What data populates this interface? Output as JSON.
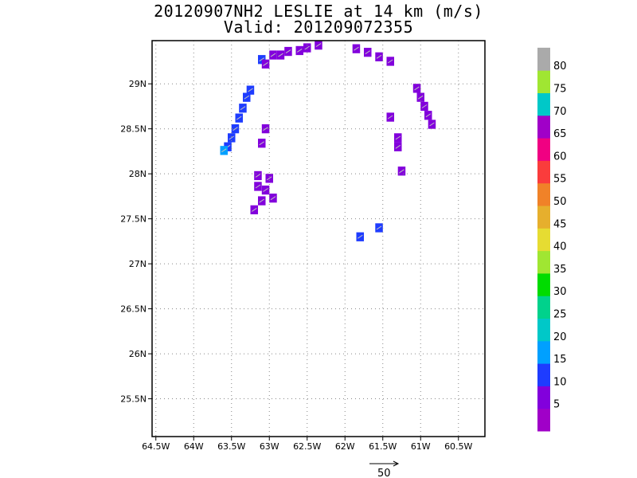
{
  "title": "20120907NH2 LESLIE at 14 km (m/s)",
  "subtitle": "Valid: 201209072355",
  "chart_data": {
    "type": "heatmap",
    "x_range": [
      -64.55,
      -60.15
    ],
    "y_range": [
      25.08,
      29.48
    ],
    "x_ticks": [
      {
        "v": -64.5,
        "label": "64.5W"
      },
      {
        "v": -64,
        "label": "64W"
      },
      {
        "v": -63.5,
        "label": "63.5W"
      },
      {
        "v": -63,
        "label": "63W"
      },
      {
        "v": -62.5,
        "label": "62.5W"
      },
      {
        "v": -62,
        "label": "62W"
      },
      {
        "v": -61.5,
        "label": "61.5W"
      },
      {
        "v": -61,
        "label": "61W"
      },
      {
        "v": -60.5,
        "label": "60.5W"
      }
    ],
    "y_ticks": [
      {
        "v": 25.5,
        "label": "25.5N"
      },
      {
        "v": 26,
        "label": "26N"
      },
      {
        "v": 26.5,
        "label": "26.5N"
      },
      {
        "v": 27,
        "label": "27N"
      },
      {
        "v": 27.5,
        "label": "27.5N"
      },
      {
        "v": 28,
        "label": "28N"
      },
      {
        "v": 28.5,
        "label": "28.5N"
      },
      {
        "v": 29,
        "label": "29N"
      }
    ],
    "grid": true,
    "colorbar": {
      "labels": [
        "5",
        "10",
        "15",
        "20",
        "25",
        "30",
        "35",
        "40",
        "45",
        "50",
        "55",
        "60",
        "65",
        "70",
        "75",
        "80"
      ],
      "colors": [
        "#a000c8",
        "#8200dc",
        "#1e3cff",
        "#00a0ff",
        "#00c8c8",
        "#00d28c",
        "#00dc00",
        "#a0e632",
        "#e6dc32",
        "#e6af2d",
        "#f08228",
        "#fa3c3c",
        "#f00082",
        "#a000c8",
        "#00c8c8",
        "#a0e632",
        "#aaaaaa"
      ]
    },
    "cells": [
      {
        "lon": -63.1,
        "lat": 29.27,
        "v": 12
      },
      {
        "lon": -63.05,
        "lat": 29.22,
        "v": 6
      },
      {
        "lon": -62.95,
        "lat": 29.32,
        "v": 6
      },
      {
        "lon": -62.85,
        "lat": 29.32,
        "v": 6
      },
      {
        "lon": -62.75,
        "lat": 29.36,
        "v": 6
      },
      {
        "lon": -62.6,
        "lat": 29.37,
        "v": 6
      },
      {
        "lon": -62.5,
        "lat": 29.4,
        "v": 6
      },
      {
        "lon": -62.35,
        "lat": 29.43,
        "v": 6
      },
      {
        "lon": -61.85,
        "lat": 29.39,
        "v": 6
      },
      {
        "lon": -61.7,
        "lat": 29.35,
        "v": 6
      },
      {
        "lon": -61.55,
        "lat": 29.3,
        "v": 6
      },
      {
        "lon": -61.4,
        "lat": 29.25,
        "v": 6
      },
      {
        "lon": -63.25,
        "lat": 28.93,
        "v": 12
      },
      {
        "lon": -63.3,
        "lat": 28.85,
        "v": 12
      },
      {
        "lon": -63.35,
        "lat": 28.73,
        "v": 12
      },
      {
        "lon": -63.4,
        "lat": 28.62,
        "v": 12
      },
      {
        "lon": -63.45,
        "lat": 28.5,
        "v": 12
      },
      {
        "lon": -63.5,
        "lat": 28.4,
        "v": 12
      },
      {
        "lon": -63.55,
        "lat": 28.3,
        "v": 12
      },
      {
        "lon": -63.6,
        "lat": 28.26,
        "v": 18
      },
      {
        "lon": -63.05,
        "lat": 28.5,
        "v": 6
      },
      {
        "lon": -63.1,
        "lat": 28.34,
        "v": 6
      },
      {
        "lon": -63.15,
        "lat": 27.98,
        "v": 6
      },
      {
        "lon": -63.0,
        "lat": 27.95,
        "v": 6
      },
      {
        "lon": -63.15,
        "lat": 27.86,
        "v": 6
      },
      {
        "lon": -63.05,
        "lat": 27.82,
        "v": 6
      },
      {
        "lon": -62.95,
        "lat": 27.73,
        "v": 6
      },
      {
        "lon": -63.1,
        "lat": 27.7,
        "v": 6
      },
      {
        "lon": -63.2,
        "lat": 27.6,
        "v": 6
      },
      {
        "lon": -61.05,
        "lat": 28.95,
        "v": 6
      },
      {
        "lon": -61.0,
        "lat": 28.85,
        "v": 6
      },
      {
        "lon": -60.95,
        "lat": 28.75,
        "v": 6
      },
      {
        "lon": -60.9,
        "lat": 28.65,
        "v": 6
      },
      {
        "lon": -60.85,
        "lat": 28.55,
        "v": 6
      },
      {
        "lon": -61.4,
        "lat": 28.63,
        "v": 6
      },
      {
        "lon": -61.3,
        "lat": 28.4,
        "v": 6
      },
      {
        "lon": -61.3,
        "lat": 28.3,
        "v": 6
      },
      {
        "lon": -61.25,
        "lat": 28.03,
        "v": 6
      },
      {
        "lon": -61.55,
        "lat": 27.4,
        "v": 12
      },
      {
        "lon": -61.8,
        "lat": 27.3,
        "v": 12
      }
    ]
  },
  "vector_reference": {
    "label": "50"
  }
}
